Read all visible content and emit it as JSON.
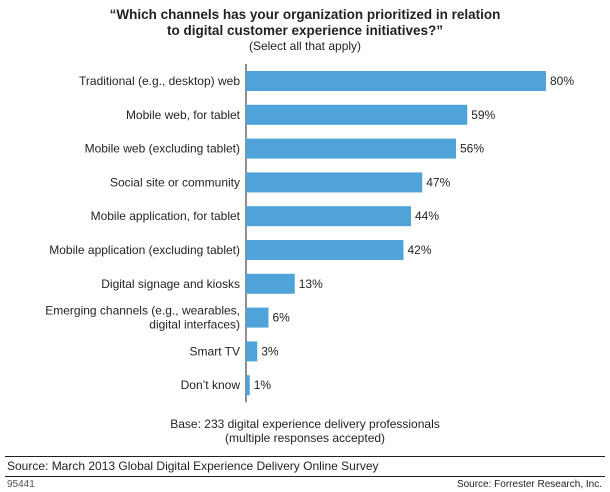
{
  "chart_data": {
    "type": "bar",
    "orientation": "horizontal",
    "title_line1": "“Which channels has your organization prioritized in relation",
    "title_line2": "to digital customer experience initiatives?”",
    "subtitle": "(Select all that apply)",
    "categories": [
      [
        "Traditional (e.g., desktop) web"
      ],
      [
        "Mobile web, for tablet"
      ],
      [
        "Mobile web (excluding tablet)"
      ],
      [
        "Social site or community"
      ],
      [
        "Mobile application, for tablet"
      ],
      [
        "Mobile application (excluding tablet)"
      ],
      [
        "Digital signage and kiosks"
      ],
      [
        "Emerging channels (e.g., wearables,",
        "digital interfaces)"
      ],
      [
        "Smart TV"
      ],
      [
        "Don’t know"
      ]
    ],
    "values": [
      80,
      59,
      56,
      47,
      44,
      42,
      13,
      6,
      3,
      1
    ],
    "value_labels": [
      "80%",
      "59%",
      "56%",
      "47%",
      "44%",
      "42%",
      "13%",
      "6%",
      "3%",
      "1%"
    ],
    "xlim": [
      0,
      100
    ],
    "unit": "%",
    "bar_color": "#4fa3d8",
    "grid": false,
    "legend": "none"
  },
  "base_line1": "Base: 233 digital experience delivery professionals",
  "base_line2": "(multiple responses accepted)",
  "source_left": "Source: March 2013 Global Digital Experience Delivery Online Survey",
  "figure_code": "95441",
  "source_right": "Source: Forrester Research, Inc."
}
